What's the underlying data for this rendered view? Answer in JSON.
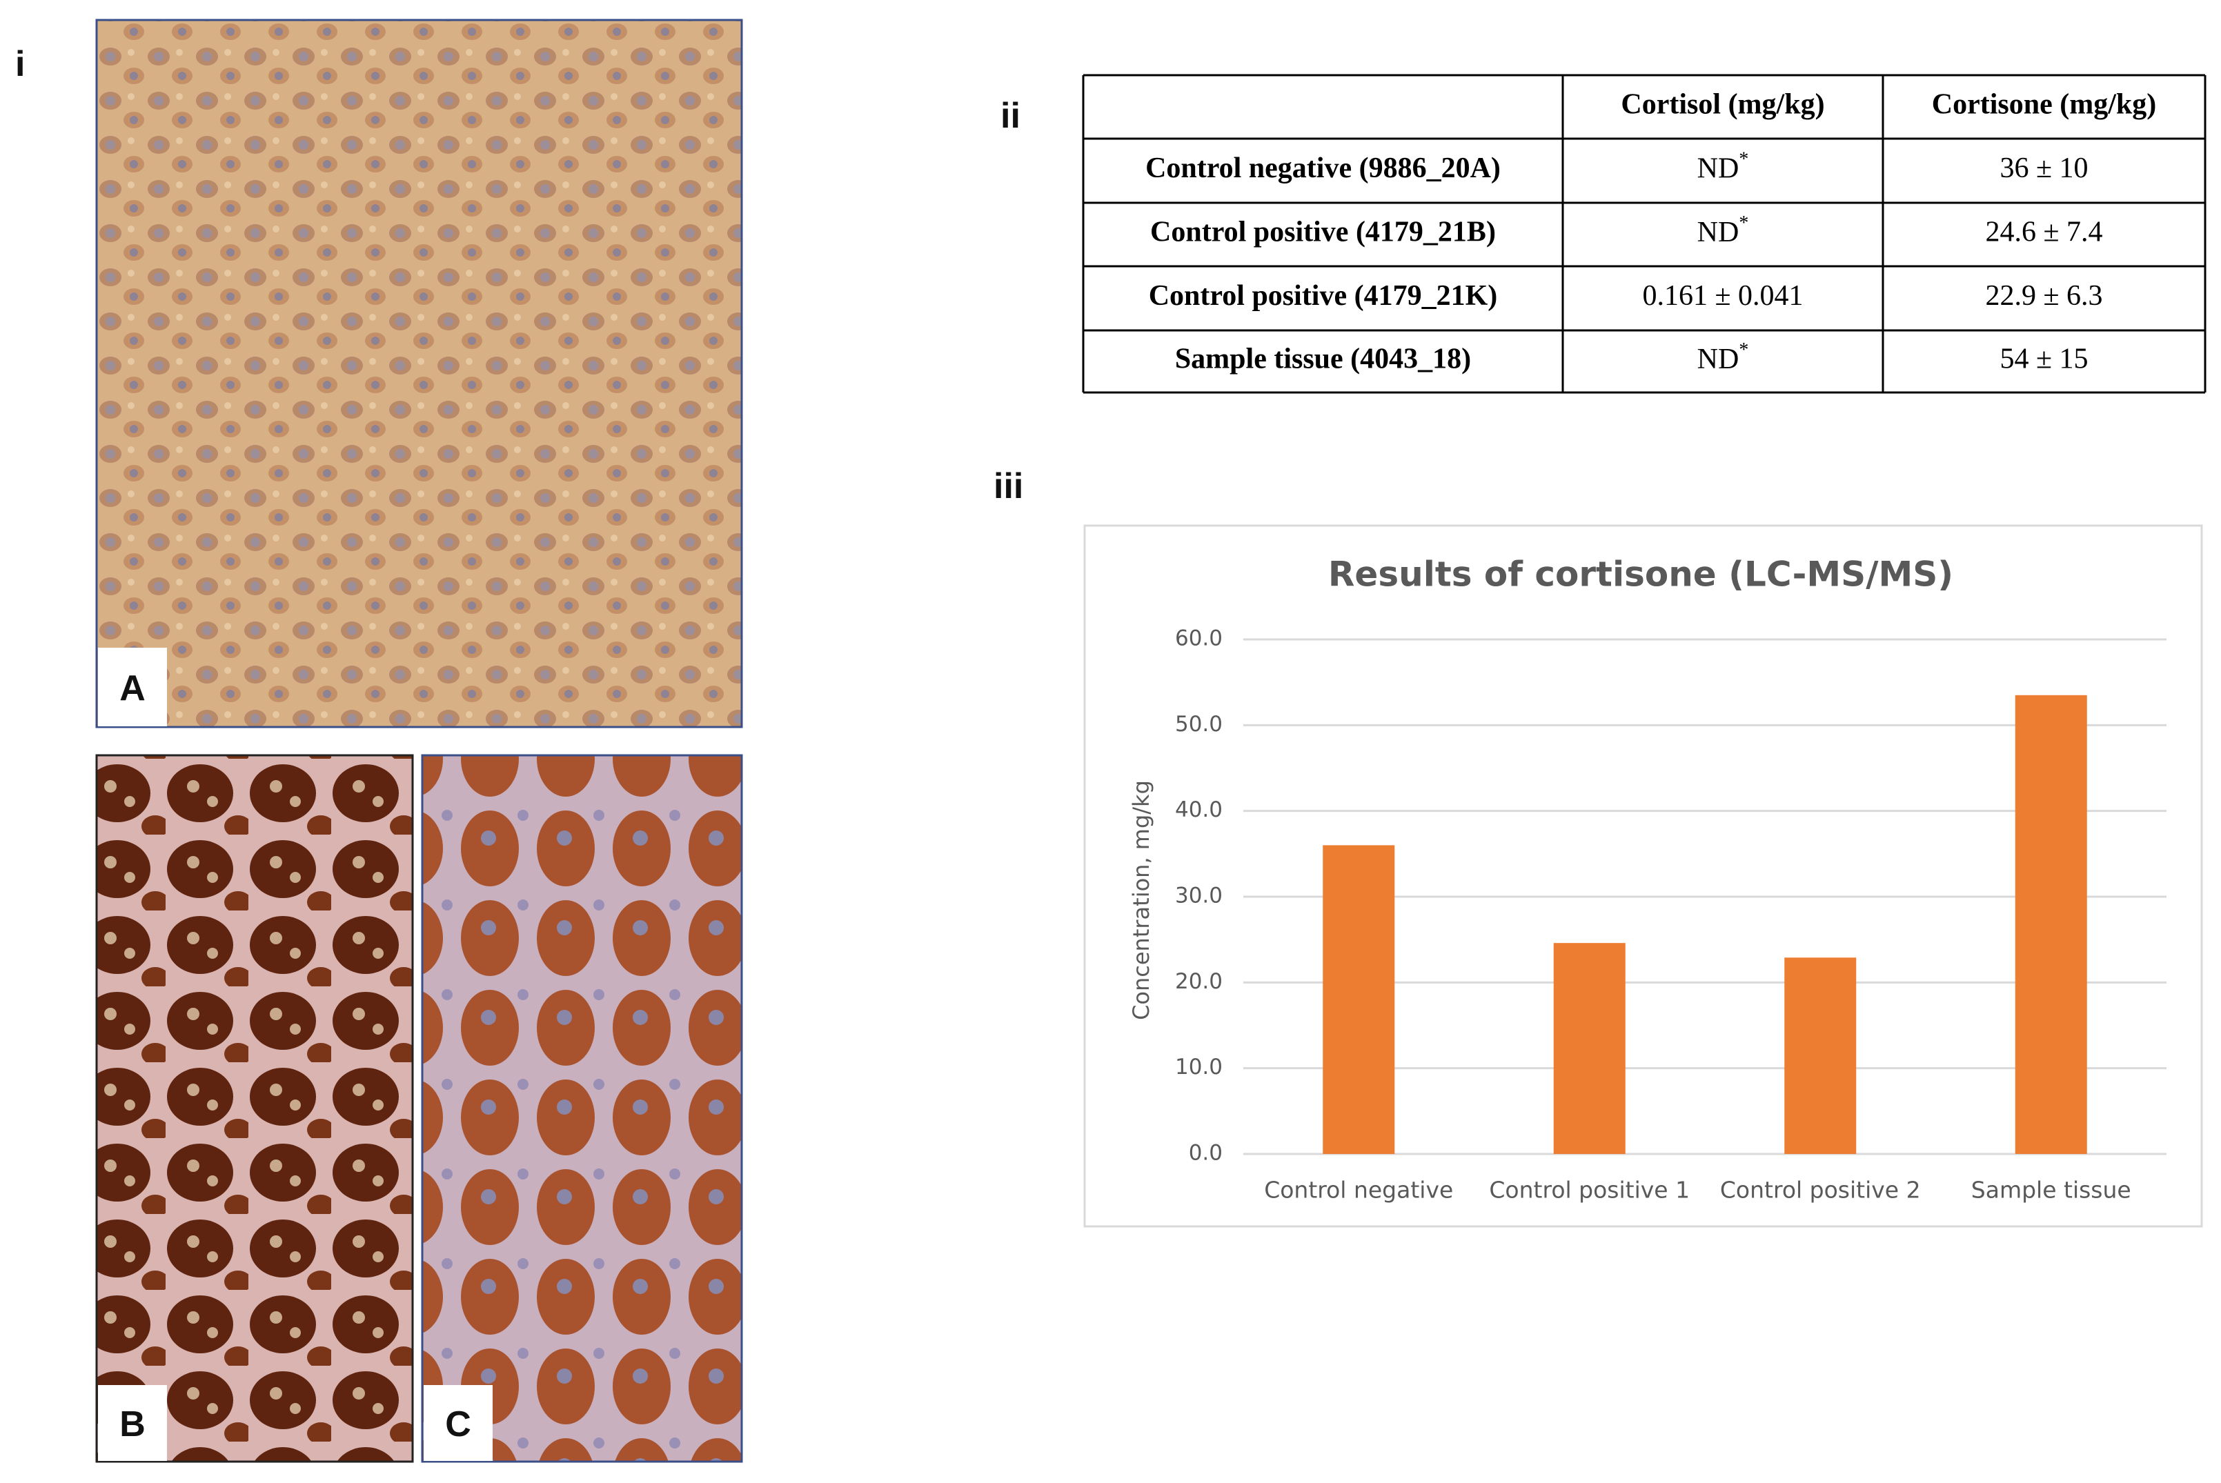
{
  "labels": {
    "panels": [
      "i",
      "ii",
      "iii"
    ],
    "images": [
      "A",
      "B",
      "C"
    ]
  },
  "table": {
    "columns": [
      "Cortisol (mg/kg)",
      "Cortisone (mg/kg)"
    ],
    "rows": [
      {
        "sample": "Control negative (9886_20A)",
        "cortisol": {
          "text": "ND",
          "sup": "*"
        },
        "cortisone": "36 ± 10"
      },
      {
        "sample": "Control positive (4179_21B)",
        "cortisol": {
          "text": "ND",
          "sup": "*"
        },
        "cortisone": "24.6 ± 7.4"
      },
      {
        "sample": "Control positive (4179_21K)",
        "cortisol": "0.161 ± 0.041",
        "cortisone": "22.9 ± 6.3"
      },
      {
        "sample": "Sample tissue (4043_18)",
        "cortisol": {
          "text": "ND",
          "sup": "*"
        },
        "cortisone": "54 ± 15"
      }
    ]
  },
  "chart_data": {
    "type": "bar",
    "title": "Results of cortisone (LC-MS/MS)",
    "y_label": "Concentration, mg/kg",
    "categories": [
      "Control negative",
      "Control positive 1",
      "Control positive 2",
      "Sample tissue"
    ],
    "values": [
      36,
      24.6,
      22.9,
      53.5
    ],
    "color": "#ed7d31",
    "ylim": [
      0,
      60
    ],
    "yticks": [
      {
        "value": 0,
        "label": "0.0"
      },
      {
        "value": 10,
        "label": "10.0"
      },
      {
        "value": 20,
        "label": "20.0"
      },
      {
        "value": 30,
        "label": "30.0"
      },
      {
        "value": 40,
        "label": "40.0"
      },
      {
        "value": 50,
        "label": "50.0"
      },
      {
        "value": 60,
        "label": "60.0"
      }
    ],
    "grid": true
  }
}
